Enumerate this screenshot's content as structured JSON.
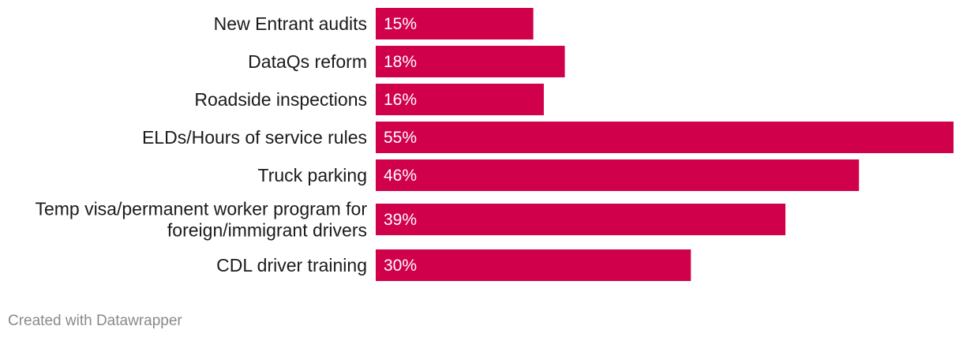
{
  "chart_data": {
    "type": "bar",
    "orientation": "horizontal",
    "categories": [
      [
        "New Entrant audits"
      ],
      [
        "DataQs reform"
      ],
      [
        "Roadside inspections"
      ],
      [
        "ELDs/Hours of service rules"
      ],
      [
        "Truck parking"
      ],
      [
        "Temp visa/permanent worker program for",
        "foreign/immigrant drivers"
      ],
      [
        "CDL driver training"
      ]
    ],
    "values": [
      15,
      18,
      16,
      55,
      46,
      39,
      30
    ],
    "value_labels": [
      "15%",
      "18%",
      "16%",
      "55%",
      "46%",
      "39%",
      "30%"
    ],
    "xlim": [
      0,
      55
    ],
    "bar_color": "#d0004b",
    "grid": false
  },
  "footer": {
    "credit": "Created with Datawrapper"
  }
}
